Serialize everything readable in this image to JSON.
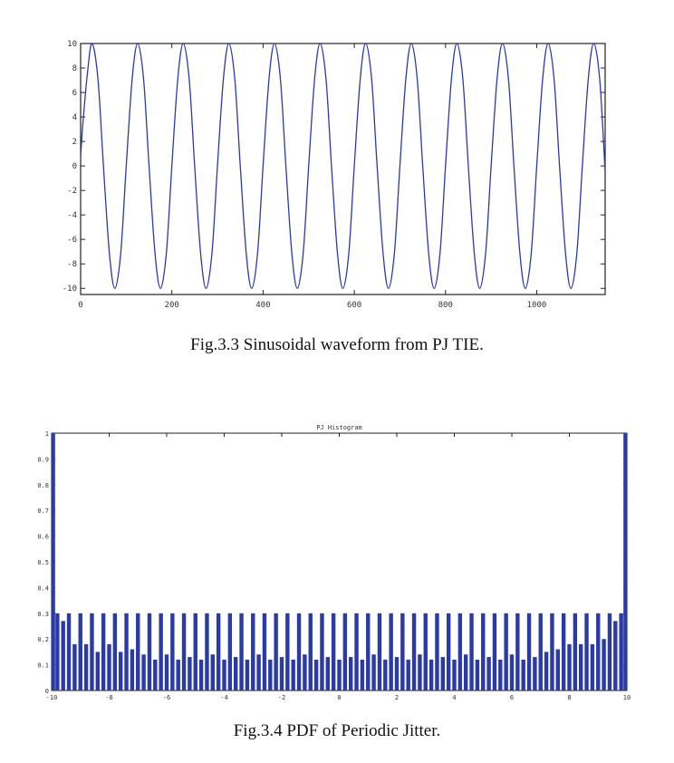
{
  "figures": [
    {
      "caption": "Fig.3.3  Sinusoidal waveform from PJ TIE."
    },
    {
      "caption": "Fig.3.4  PDF of Periodic Jitter."
    }
  ],
  "chart_data": [
    {
      "type": "line",
      "title": "",
      "xlabel": "",
      "ylabel": "",
      "xlim": [
        0,
        1150
      ],
      "ylim": [
        -10.5,
        10
      ],
      "x_ticks": [
        "0",
        "200",
        "400",
        "600",
        "800",
        "1000"
      ],
      "y_ticks": [
        "10",
        "8",
        "6",
        "4",
        "2",
        "0",
        "-2",
        "-4",
        "-6",
        "-8",
        "-10"
      ],
      "series": [
        {
          "color": "#2a3aa6",
          "x": [
            0,
            5,
            15,
            25,
            38,
            50,
            63,
            75,
            88,
            100,
            113,
            125,
            138,
            150,
            163,
            175,
            188,
            200,
            213,
            225,
            238,
            250,
            263,
            275,
            288,
            300,
            313,
            325,
            338,
            350,
            363,
            375,
            388,
            400,
            413,
            425,
            438,
            450,
            463,
            475,
            488,
            500,
            513,
            525,
            538,
            550,
            563,
            575,
            588,
            600,
            613,
            625,
            638,
            650,
            663,
            675,
            688,
            700,
            713,
            725,
            738,
            750,
            763,
            775,
            788,
            800,
            813,
            825,
            838,
            850,
            863,
            875,
            888,
            900,
            913,
            925,
            938,
            950,
            963,
            975,
            988,
            1000,
            1013,
            1025,
            1038,
            1050,
            1063,
            1075,
            1088,
            1100,
            1113,
            1125,
            1138,
            1150
          ],
          "y": [
            0.8,
            3.5,
            7.6,
            10.0,
            7.1,
            0.0,
            -7.1,
            -10.0,
            -7.1,
            0.0,
            7.1,
            10.0,
            7.1,
            0.0,
            -7.1,
            -10.0,
            -7.1,
            0.0,
            7.1,
            10.0,
            7.1,
            0.0,
            -7.1,
            -10.0,
            -7.1,
            0.0,
            7.1,
            10.0,
            7.1,
            0.0,
            -7.1,
            -10.0,
            -7.1,
            0.0,
            7.1,
            10.0,
            7.1,
            0.0,
            -7.1,
            -10.0,
            -7.1,
            0.0,
            7.1,
            10.0,
            7.1,
            0.0,
            -7.1,
            -10.0,
            -7.1,
            0.0,
            7.1,
            10.0,
            7.1,
            0.0,
            -7.1,
            -10.0,
            -7.1,
            0.0,
            7.1,
            10.0,
            7.1,
            0.0,
            -7.1,
            -10.0,
            -7.1,
            0.0,
            7.1,
            10.0,
            7.1,
            0.0,
            -7.1,
            -10.0,
            -7.1,
            0.0,
            7.1,
            10.0,
            7.1,
            0.0,
            -7.1,
            -10.0,
            -7.1,
            0.0,
            7.1,
            10.0,
            7.1,
            0.0,
            -7.1,
            -10.0,
            -7.1,
            0.0,
            7.1,
            10.0,
            7.1,
            -0.5
          ]
        }
      ]
    },
    {
      "type": "bar",
      "title": "PJ Histogram",
      "xlabel": "",
      "ylabel": "",
      "xlim": [
        -10,
        10
      ],
      "ylim": [
        0,
        1
      ],
      "x_ticks": [
        "-10",
        "-8",
        "-6",
        "-4",
        "-2",
        "0",
        "2",
        "4",
        "6",
        "8",
        "10"
      ],
      "y_ticks": [
        "1",
        "0.9",
        "0.8",
        "0.7",
        "0.6",
        "0.5",
        "0.4",
        "0.3",
        "0.2",
        "0.1",
        "0"
      ],
      "series": [
        {
          "color": "#2a3aa6",
          "x": [
            -9.95,
            -9.8,
            -9.6,
            -9.4,
            -9.2,
            -9.0,
            -8.8,
            -8.6,
            -8.4,
            -8.2,
            -8.0,
            -7.8,
            -7.6,
            -7.4,
            -7.2,
            -7.0,
            -6.8,
            -6.6,
            -6.4,
            -6.2,
            -6.0,
            -5.8,
            -5.6,
            -5.4,
            -5.2,
            -5.0,
            -4.8,
            -4.6,
            -4.4,
            -4.2,
            -4.0,
            -3.8,
            -3.6,
            -3.4,
            -3.2,
            -3.0,
            -2.8,
            -2.6,
            -2.4,
            -2.2,
            -2.0,
            -1.8,
            -1.6,
            -1.4,
            -1.2,
            -1.0,
            -0.8,
            -0.6,
            -0.4,
            -0.2,
            0.0,
            0.2,
            0.4,
            0.6,
            0.8,
            1.0,
            1.2,
            1.4,
            1.6,
            1.8,
            2.0,
            2.2,
            2.4,
            2.6,
            2.8,
            3.0,
            3.2,
            3.4,
            3.6,
            3.8,
            4.0,
            4.2,
            4.4,
            4.6,
            4.8,
            5.0,
            5.2,
            5.4,
            5.6,
            5.8,
            6.0,
            6.2,
            6.4,
            6.6,
            6.8,
            7.0,
            7.2,
            7.4,
            7.6,
            7.8,
            8.0,
            8.2,
            8.4,
            8.6,
            8.8,
            9.0,
            9.2,
            9.4,
            9.6,
            9.8,
            9.95
          ],
          "y": [
            1.0,
            0.3,
            0.27,
            0.3,
            0.18,
            0.3,
            0.18,
            0.3,
            0.15,
            0.3,
            0.18,
            0.3,
            0.15,
            0.3,
            0.16,
            0.3,
            0.14,
            0.3,
            0.12,
            0.3,
            0.14,
            0.3,
            0.12,
            0.3,
            0.13,
            0.3,
            0.12,
            0.3,
            0.14,
            0.3,
            0.12,
            0.3,
            0.13,
            0.3,
            0.12,
            0.3,
            0.14,
            0.3,
            0.12,
            0.3,
            0.13,
            0.3,
            0.12,
            0.3,
            0.14,
            0.3,
            0.12,
            0.3,
            0.13,
            0.3,
            0.12,
            0.3,
            0.13,
            0.3,
            0.12,
            0.3,
            0.14,
            0.3,
            0.12,
            0.3,
            0.13,
            0.3,
            0.12,
            0.3,
            0.14,
            0.3,
            0.12,
            0.3,
            0.13,
            0.3,
            0.12,
            0.3,
            0.14,
            0.3,
            0.12,
            0.3,
            0.13,
            0.3,
            0.12,
            0.3,
            0.14,
            0.3,
            0.12,
            0.3,
            0.13,
            0.3,
            0.15,
            0.3,
            0.16,
            0.3,
            0.18,
            0.3,
            0.18,
            0.3,
            0.18,
            0.3,
            0.2,
            0.3,
            0.27,
            0.3,
            1.0
          ]
        }
      ]
    }
  ]
}
